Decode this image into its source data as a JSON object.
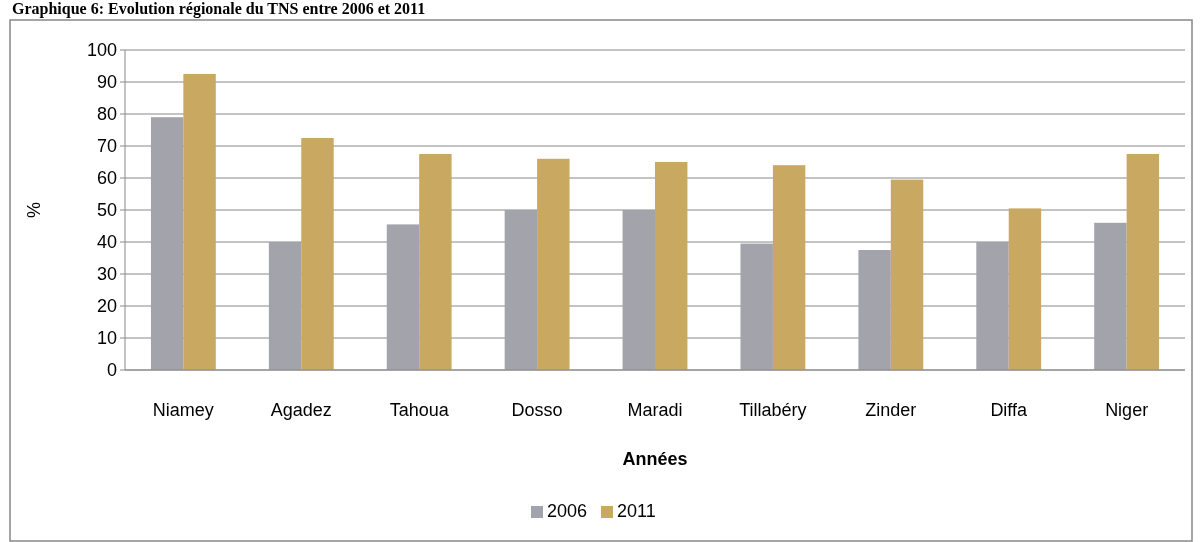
{
  "chart_data": {
    "type": "bar",
    "title": "Graphique 6: Evolution régionale du TNS entre 2006 et 2011",
    "xlabel": "Années",
    "ylabel": "%",
    "categories": [
      "Niamey",
      "Agadez",
      "Tahoua",
      "Dosso",
      "Maradi",
      "Tillabéry",
      "Zinder",
      "Diffa",
      "Niger"
    ],
    "series": [
      {
        "name": "2006",
        "color": "#a3a3ab",
        "values": [
          79,
          40,
          45.5,
          50,
          50,
          39.5,
          37.5,
          40,
          46
        ]
      },
      {
        "name": "2011",
        "color": "#c9a862",
        "values": [
          92.5,
          72.5,
          67.5,
          66,
          65,
          64,
          59.5,
          50.5,
          67.5
        ]
      }
    ],
    "ylim": [
      0,
      100
    ],
    "yticks": [
      0,
      10,
      20,
      30,
      40,
      50,
      60,
      70,
      80,
      90,
      100
    ],
    "grid": "y",
    "legend": "bottom"
  }
}
